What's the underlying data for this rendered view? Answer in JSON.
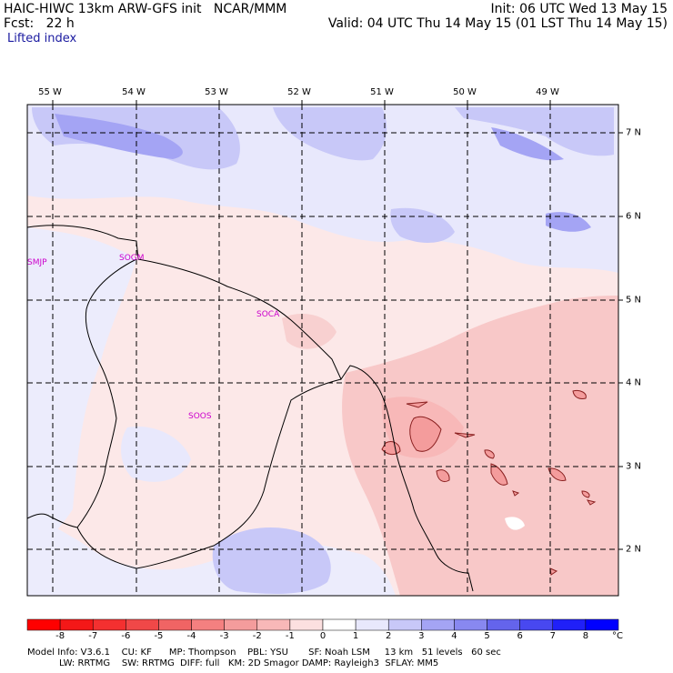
{
  "header": {
    "title_left": "HAIC-HIWC 13km ARW-GFS init   NCAR/MMM",
    "forecast": "Fcst:   22 h",
    "init": "Init: 06 UTC Wed 13 May 15",
    "valid": "Valid: 04 UTC Thu 14 May 15 (01 LST Thu 14 May 15)",
    "field": "Lifted index"
  },
  "longitude_labels": [
    "55 W",
    "54 W",
    "53 W",
    "52 W",
    "51 W",
    "50 W",
    "49 W"
  ],
  "latitude_labels": [
    "7 N",
    "6 N",
    "5 N",
    "4 N",
    "3 N",
    "2 N"
  ],
  "stations": [
    {
      "id": "SMJP",
      "name": "SMJP"
    },
    {
      "id": "SOGM",
      "name": "SOGM"
    },
    {
      "id": "SOCA",
      "name": "SOCA"
    },
    {
      "id": "SOOS",
      "name": "SOOS"
    }
  ],
  "colorbar": {
    "labels": [
      "-8",
      "-7",
      "-6",
      "-5",
      "-4",
      "-3",
      "-2",
      "-1",
      "0",
      "1",
      "2",
      "3",
      "4",
      "5",
      "6",
      "7",
      "8"
    ],
    "unit": "°C",
    "colors": [
      "#ff0000",
      "#f41818",
      "#f43030",
      "#f04848",
      "#f06464",
      "#f48080",
      "#f49c9c",
      "#f8b8b8",
      "#fce0e0",
      "#ffffff",
      "#e8e8fc",
      "#c8c8f8",
      "#a4a4f4",
      "#8888f0",
      "#6464ec",
      "#4848f0",
      "#2020f8",
      "#0000ff"
    ]
  },
  "footer": {
    "line1": "Model Info: V3.6.1    CU: KF      MP: Thompson    PBL: YSU       SF: Noah LSM     13 km   51 levels   60 sec",
    "line2": "           LW: RRTMG    SW: RRTMG  DIFF: full   KM: 2D Smagor DAMP: Rayleigh3  SFLAY: MM5"
  }
}
